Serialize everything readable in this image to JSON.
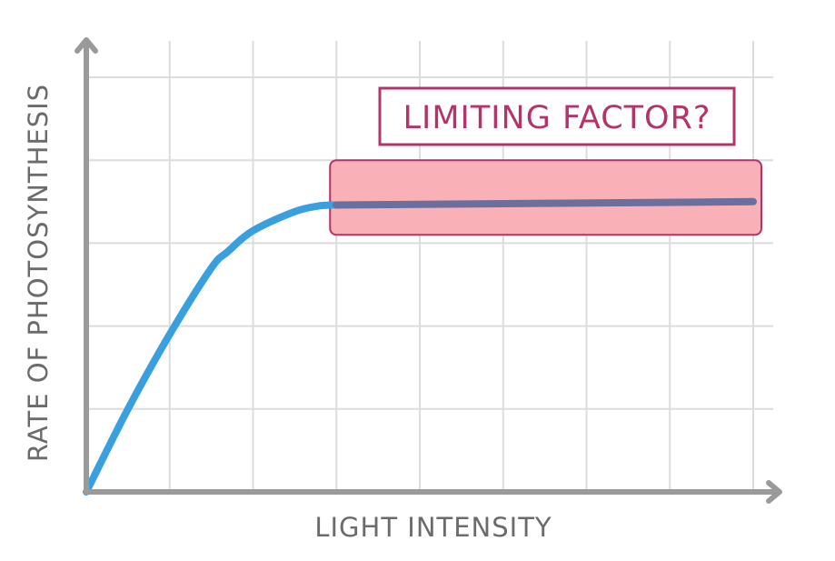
{
  "chart_data": {
    "type": "line",
    "title": "",
    "xlabel": "LIGHT INTENSITY",
    "ylabel": "RATE OF PHOTOSYNTHESIS",
    "xlim": [
      0,
      8
    ],
    "ylim": [
      0,
      5
    ],
    "grid": true,
    "series": [
      {
        "color": "#3a9fdf",
        "x": [
          0,
          0.5,
          1.0,
          1.5,
          1.7,
          2.0,
          2.5,
          2.8,
          3.0
        ],
        "y": [
          0,
          1.0,
          1.9,
          2.7,
          2.9,
          3.15,
          3.38,
          3.45,
          3.46
        ]
      },
      {
        "color": "#6a6f9e",
        "x": [
          3.0,
          8.0
        ],
        "y": [
          3.46,
          3.5
        ]
      }
    ],
    "annotations": [
      {
        "text": "LIMITING FACTOR?",
        "color": "#b3346b",
        "x_range": [
          3.0,
          8.0
        ],
        "y_range": [
          3.1,
          4.0
        ],
        "fill": "#f9b0b6"
      }
    ]
  },
  "colors": {
    "axis": "#9a9a9a",
    "grid": "#dcdcdc",
    "axis_text": "#6b6b6b",
    "highlight_fill": "#f9b0b6",
    "highlight_stroke": "#b3346b"
  }
}
